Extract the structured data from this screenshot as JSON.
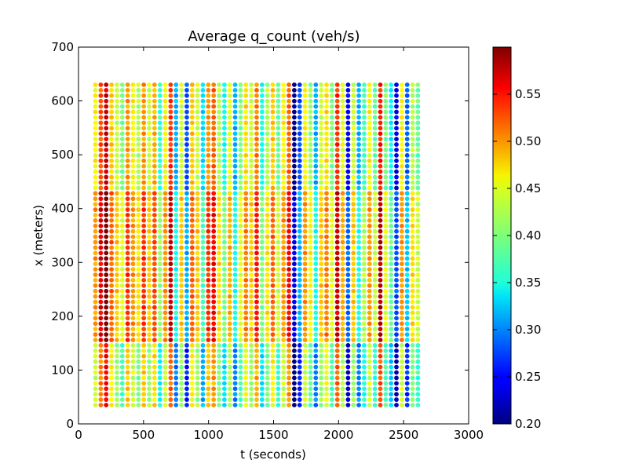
{
  "chart_data": {
    "type": "scatter",
    "title": "Average q_count (veh/s)",
    "xlabel": "t (seconds)",
    "ylabel": "x (meters)",
    "xlim": [
      0,
      3000
    ],
    "ylim": [
      0,
      700
    ],
    "xticks": [
      "0",
      "500",
      "1000",
      "1500",
      "2000",
      "2500",
      "3000"
    ],
    "yticks": [
      "0",
      "100",
      "200",
      "300",
      "400",
      "500",
      "600",
      "700"
    ],
    "grid": false,
    "colormap": "jet",
    "colorbar": {
      "range": [
        0.2,
        0.6
      ],
      "ticks": [
        "0.20",
        "0.25",
        "0.30",
        "0.35",
        "0.40",
        "0.45",
        "0.50",
        "0.55"
      ],
      "tick_values": [
        0.2,
        0.25,
        0.3,
        0.35,
        0.4,
        0.45,
        0.5,
        0.55
      ]
    },
    "grid_points": {
      "t_start": 130,
      "t_end": 2610,
      "t_count": 61,
      "x_start": 35,
      "x_end": 630,
      "x_count": 60
    },
    "column_values": [
      0.46,
      0.53,
      0.58,
      0.48,
      0.44,
      0.41,
      0.5,
      0.46,
      0.43,
      0.5,
      0.44,
      0.49,
      0.38,
      0.46,
      0.54,
      0.33,
      0.44,
      0.29,
      0.48,
      0.44,
      0.35,
      0.5,
      0.52,
      0.43,
      0.37,
      0.45,
      0.33,
      0.41,
      0.47,
      0.44,
      0.51,
      0.37,
      0.43,
      0.48,
      0.4,
      0.46,
      0.52,
      0.21,
      0.29,
      0.46,
      0.42,
      0.33,
      0.44,
      0.47,
      0.41,
      0.54,
      0.45,
      0.26,
      0.44,
      0.33,
      0.39,
      0.46,
      0.4,
      0.55,
      0.41,
      0.36,
      0.25,
      0.46,
      0.3,
      0.43,
      0.4
    ],
    "x_band_offsets": [
      {
        "x_from": 35,
        "x_to": 150,
        "offset": -0.03
      },
      {
        "x_from": 160,
        "x_to": 430,
        "offset": 0.03
      },
      {
        "x_from": 440,
        "x_to": 630,
        "offset": -0.01
      }
    ]
  }
}
